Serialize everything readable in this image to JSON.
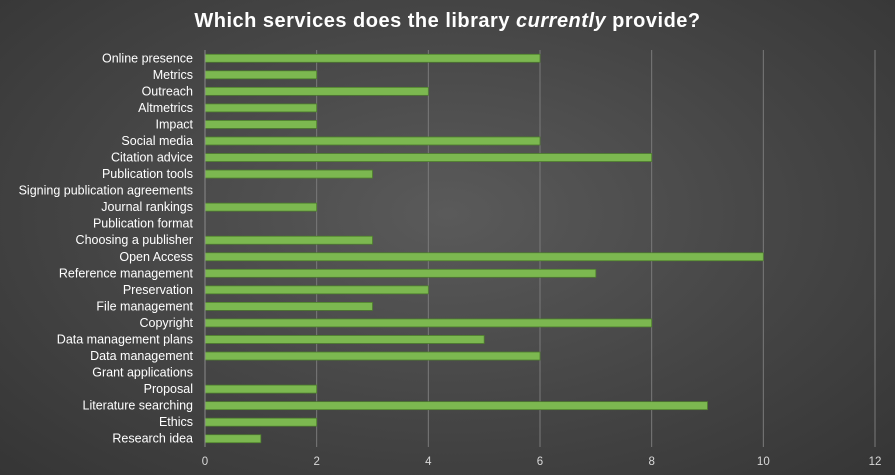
{
  "chart_data": {
    "type": "bar",
    "orientation": "horizontal",
    "title_parts": [
      "Which services does the library ",
      "currently",
      " provide?"
    ],
    "categories": [
      "Online presence",
      "Metrics",
      "Outreach",
      "Altmetrics",
      "Impact",
      "Social media",
      "Citation advice",
      "Publication tools",
      "Signing publication agreements",
      "Journal rankings",
      "Publication format",
      "Choosing a publisher",
      "Open Access",
      "Reference management",
      "Preservation",
      "File management",
      "Copyright",
      "Data management plans",
      "Data management",
      "Grant applications",
      "Proposal",
      "Literature searching",
      "Ethics",
      "Research idea"
    ],
    "values": [
      6,
      2,
      4,
      2,
      2,
      6,
      8,
      3,
      0,
      2,
      0,
      3,
      10,
      7,
      4,
      3,
      8,
      5,
      6,
      0,
      2,
      9,
      2,
      1
    ],
    "xlim": [
      0,
      12
    ],
    "xticks": [
      "0",
      "2",
      "4",
      "6",
      "8",
      "10",
      "12"
    ],
    "grid": "vertical",
    "bar_color": "#7cb850",
    "bar_edge_color": "#4e7d2e",
    "grid_color": "#7a7a7a",
    "background_color": "#454545",
    "legend": "none"
  }
}
